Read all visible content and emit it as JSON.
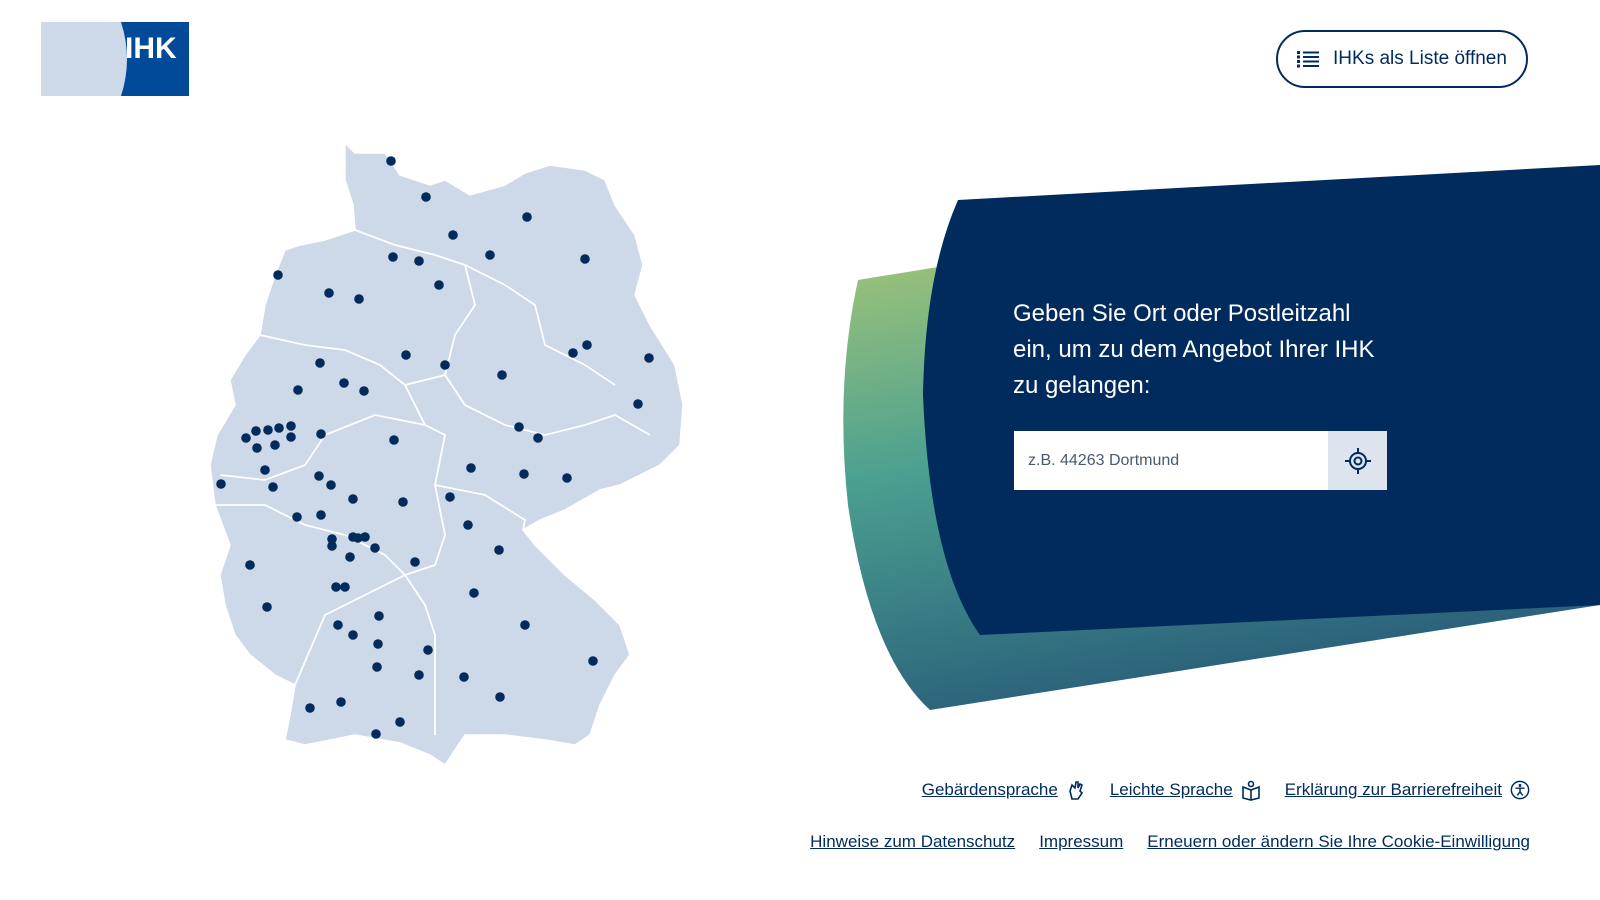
{
  "brand": {
    "logo_text": "IHK"
  },
  "header": {
    "list_button_label": "IHKs als Liste öffnen"
  },
  "search_panel": {
    "prompt": "Geben Sie Ort oder Postleitzahl ein, um zu dem Angebot Ihrer IHK zu gelangen:",
    "input_value": "",
    "input_placeholder": "z.B. 44263 Dortmund"
  },
  "footer": {
    "row1": [
      {
        "label": "Gebärdensprache",
        "icon": "sign-language-icon"
      },
      {
        "label": "Leichte Sprache",
        "icon": "easy-language-icon"
      },
      {
        "label": "Erklärung zur Barrierefreiheit",
        "icon": "accessibility-icon"
      }
    ],
    "row2": [
      {
        "label": "Hinweise zum Datenschutz"
      },
      {
        "label": "Impressum"
      },
      {
        "label": "Erneuern oder ändern Sie Ihre Cookie-Einwilligung"
      }
    ]
  },
  "colors": {
    "navy": "#002b5c",
    "map_fill": "#cdd8e8",
    "logo_light": "#cdd8e8",
    "gradient_top": "#9cc27a",
    "gradient_mid": "#4aa090",
    "gradient_bottom": "#2a5f7a"
  }
}
